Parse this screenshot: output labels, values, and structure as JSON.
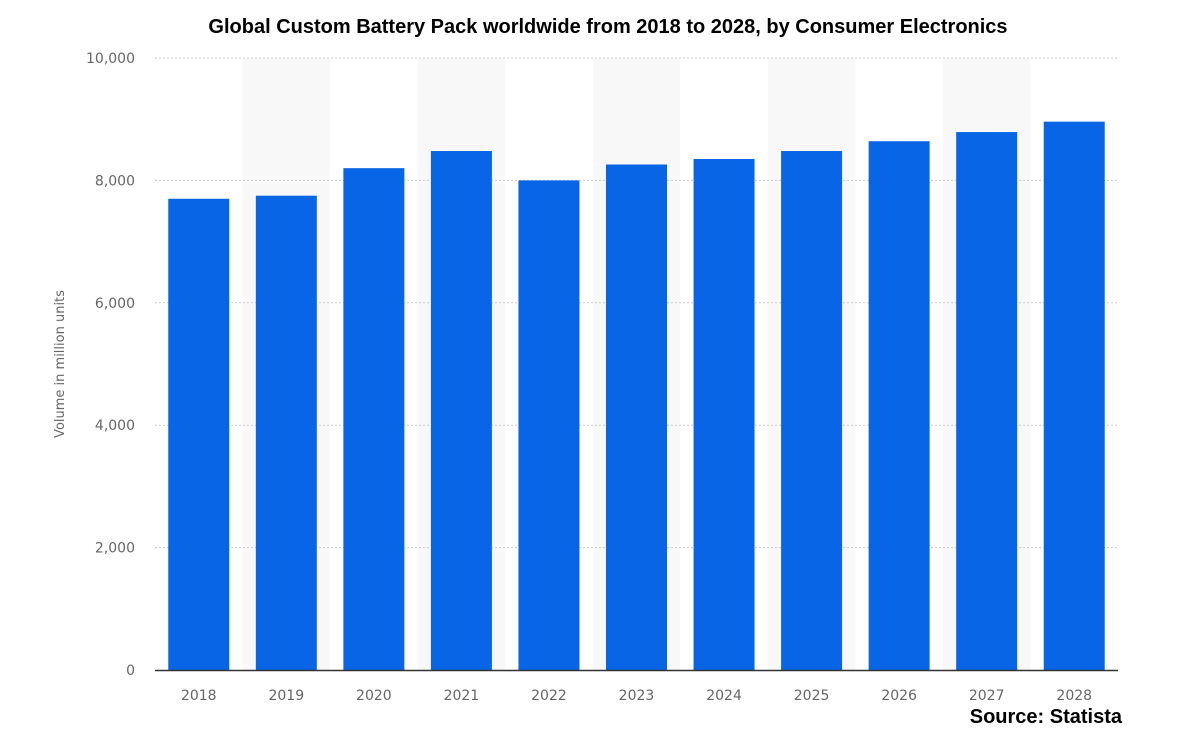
{
  "chart_data": {
    "type": "bar",
    "title": "Global Custom Battery Pack worldwide from 2018 to 2028, by Consumer Electronics",
    "xlabel": "",
    "ylabel": "Volume in million units",
    "categories": [
      "2018",
      "2019",
      "2020",
      "2021",
      "2022",
      "2023",
      "2024",
      "2025",
      "2026",
      "2027",
      "2028"
    ],
    "values": [
      7700,
      7750,
      8200,
      8480,
      8000,
      8260,
      8350,
      8480,
      8640,
      8790,
      8960
    ],
    "ylim": [
      0,
      10000
    ],
    "yticks": [
      0,
      2000,
      4000,
      6000,
      8000,
      10000
    ],
    "ytick_labels": [
      "0",
      "2,000",
      "4,000",
      "6,000",
      "8,000",
      "10,000"
    ],
    "grid": true,
    "bar_color": "#0866e6",
    "source": "Source: Statista"
  }
}
